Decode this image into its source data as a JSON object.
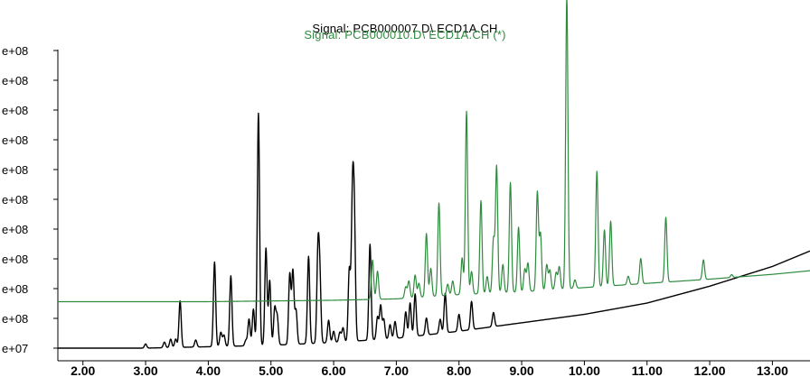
{
  "titles": {
    "signal_1": "Signal: PCB000007.D\\ ECD1A.CH",
    "signal_2": "Signal: PCB000010.D\\ ECD1A.CH (*)"
  },
  "chart_data": {
    "type": "line",
    "title": "Signal: PCB000007.D\\ ECD1A.CH / Signal: PCB000010.D\\ ECD1A.CH (*)",
    "xlabel": "",
    "ylabel": "",
    "xlim": [
      1.6,
      13.6
    ],
    "ylim": [
      0,
      10.6
    ],
    "grid": false,
    "x_ticks": [
      "2.00",
      "3.00",
      "4.00",
      "5.00",
      "6.00",
      "7.00",
      "8.00",
      "9.00",
      "10.00",
      "11.00",
      "12.00",
      "13.00"
    ],
    "y_ticks": [
      "e+07",
      "e+08",
      "e+08",
      "e+08",
      "e+08",
      "e+08",
      "e+08",
      "e+08",
      "e+08",
      "e+08",
      "e+08"
    ],
    "colors": {
      "signal_1": "#000000",
      "signal_2": "#2e8b3e"
    },
    "series": [
      {
        "name": "Signal: PCB000007.D\\ ECD1A.CH",
        "baseline": [
          [
            1.6,
            0.0
          ],
          [
            3.0,
            0.0
          ],
          [
            4.0,
            0.05
          ],
          [
            5.0,
            0.1
          ],
          [
            6.0,
            0.2
          ],
          [
            7.0,
            0.35
          ],
          [
            8.0,
            0.6
          ],
          [
            9.0,
            0.9
          ],
          [
            10.0,
            1.2
          ],
          [
            11.0,
            1.6
          ],
          [
            12.0,
            2.2
          ],
          [
            13.0,
            2.9
          ],
          [
            13.6,
            3.45
          ]
        ],
        "peaks": [
          [
            3.0,
            0.15
          ],
          [
            3.3,
            0.2
          ],
          [
            3.4,
            0.3
          ],
          [
            3.48,
            0.3
          ],
          [
            3.55,
            1.65
          ],
          [
            3.8,
            0.25
          ],
          [
            4.1,
            3.0
          ],
          [
            4.2,
            0.5
          ],
          [
            4.25,
            0.4
          ],
          [
            4.36,
            2.5
          ],
          [
            4.6,
            0.2
          ],
          [
            4.65,
            0.95
          ],
          [
            4.72,
            1.3
          ],
          [
            4.8,
            8.25
          ],
          [
            4.92,
            3.45
          ],
          [
            4.98,
            2.3
          ],
          [
            5.06,
            1.3
          ],
          [
            5.1,
            1.0
          ],
          [
            5.3,
            2.5
          ],
          [
            5.35,
            2.6
          ],
          [
            5.4,
            1.2
          ],
          [
            5.6,
            3.1
          ],
          [
            5.75,
            3.2
          ],
          [
            5.78,
            2.2
          ],
          [
            5.92,
            0.8
          ],
          [
            6.0,
            0.4
          ],
          [
            6.1,
            0.35
          ],
          [
            6.15,
            0.5
          ],
          [
            6.25,
            2.55
          ],
          [
            6.3,
            4.85
          ],
          [
            6.33,
            4.1
          ],
          [
            6.58,
            3.4
          ],
          [
            6.7,
            0.8
          ],
          [
            6.75,
            1.2
          ],
          [
            6.8,
            0.7
          ],
          [
            6.9,
            0.5
          ],
          [
            6.98,
            0.6
          ],
          [
            7.15,
            0.9
          ],
          [
            7.22,
            1.2
          ],
          [
            7.3,
            1.5
          ],
          [
            7.48,
            0.6
          ],
          [
            7.7,
            0.5
          ],
          [
            7.78,
            1.4
          ],
          [
            8.0,
            0.6
          ],
          [
            8.2,
            1.0
          ],
          [
            8.55,
            0.5
          ]
        ]
      },
      {
        "name": "Signal: PCB000010.D\\ ECD1A.CH (*)",
        "baseline": [
          [
            1.6,
            1.65
          ],
          [
            4.0,
            1.65
          ],
          [
            6.0,
            1.7
          ],
          [
            7.0,
            1.75
          ],
          [
            8.0,
            1.9
          ],
          [
            9.0,
            2.0
          ],
          [
            10.0,
            2.15
          ],
          [
            11.0,
            2.3
          ],
          [
            12.0,
            2.45
          ],
          [
            13.0,
            2.62
          ],
          [
            13.6,
            2.75
          ]
        ],
        "peaks": [
          [
            6.62,
            1.4
          ],
          [
            6.7,
            1.0
          ],
          [
            7.15,
            0.4
          ],
          [
            7.2,
            0.6
          ],
          [
            7.3,
            0.8
          ],
          [
            7.36,
            0.5
          ],
          [
            7.48,
            2.25
          ],
          [
            7.55,
            1.0
          ],
          [
            7.68,
            3.3
          ],
          [
            7.82,
            0.4
          ],
          [
            7.9,
            0.5
          ],
          [
            8.05,
            1.3
          ],
          [
            8.12,
            6.5
          ],
          [
            8.2,
            0.8
          ],
          [
            8.35,
            3.3
          ],
          [
            8.45,
            0.6
          ],
          [
            8.55,
            1.9
          ],
          [
            8.6,
            4.5
          ],
          [
            8.7,
            1.0
          ],
          [
            8.82,
            3.9
          ],
          [
            8.95,
            2.3
          ],
          [
            9.05,
            0.8
          ],
          [
            9.1,
            1.0
          ],
          [
            9.25,
            3.5
          ],
          [
            9.3,
            2.0
          ],
          [
            9.4,
            0.9
          ],
          [
            9.45,
            0.7
          ],
          [
            9.55,
            0.6
          ],
          [
            9.6,
            0.8
          ],
          [
            9.72,
            10.4
          ],
          [
            9.85,
            0.3
          ],
          [
            10.2,
            4.1
          ],
          [
            10.32,
            2.0
          ],
          [
            10.42,
            2.3
          ],
          [
            10.7,
            0.3
          ],
          [
            10.9,
            0.9
          ],
          [
            11.3,
            2.3
          ],
          [
            11.9,
            0.7
          ],
          [
            12.35,
            0.1
          ]
        ]
      }
    ]
  }
}
